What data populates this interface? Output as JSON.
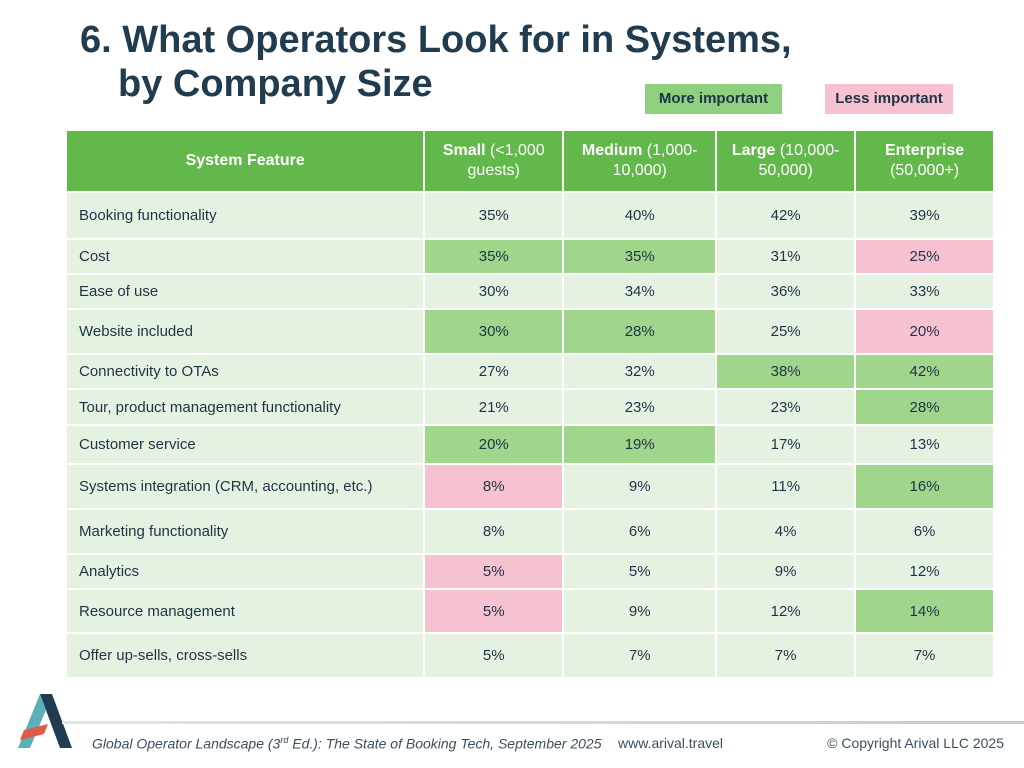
{
  "title": {
    "line1": "6. What Operators Look for in Systems,",
    "line2": "by Company Size"
  },
  "legend": {
    "more": "More important",
    "less": "Less important"
  },
  "colors": {
    "header": "#62b84b",
    "more": "#9fd68b",
    "less": "#f6c2cf",
    "neutral": "#e5f2e1"
  },
  "table": {
    "headers": [
      {
        "bold": "System Feature",
        "rest": ""
      },
      {
        "bold": "Small",
        "rest": " (<1,000 guests)"
      },
      {
        "bold": "Medium",
        "rest": " (1,000-10,000)"
      },
      {
        "bold": "Large",
        "rest": " (10,000-50,000)"
      },
      {
        "bold": "Enterprise",
        "rest": " (50,000+)"
      }
    ],
    "rows": [
      {
        "feature": "Booking functionality",
        "values": [
          "35%",
          "40%",
          "42%",
          "39%"
        ],
        "highlight": [
          "",
          "",
          "",
          ""
        ]
      },
      {
        "feature": "Cost",
        "values": [
          "35%",
          "35%",
          "31%",
          "25%"
        ],
        "highlight": [
          "more",
          "more",
          "",
          "less"
        ]
      },
      {
        "feature": "Ease of use",
        "values": [
          "30%",
          "34%",
          "36%",
          "33%"
        ],
        "highlight": [
          "",
          "",
          "",
          ""
        ]
      },
      {
        "feature": "Website included",
        "values": [
          "30%",
          "28%",
          "25%",
          "20%"
        ],
        "highlight": [
          "more",
          "more",
          "",
          "less"
        ]
      },
      {
        "feature": "Connectivity to OTAs",
        "values": [
          "27%",
          "32%",
          "38%",
          "42%"
        ],
        "highlight": [
          "",
          "",
          "more",
          "more"
        ]
      },
      {
        "feature": "Tour, product  management functionality",
        "values": [
          "21%",
          "23%",
          "23%",
          "28%"
        ],
        "highlight": [
          "",
          "",
          "",
          "more"
        ]
      },
      {
        "feature": "Customer service",
        "values": [
          "20%",
          "19%",
          "17%",
          "13%"
        ],
        "highlight": [
          "more",
          "more",
          "",
          ""
        ]
      },
      {
        "feature": "Systems integration (CRM, accounting, etc.)",
        "values": [
          "8%",
          "9%",
          "11%",
          "16%"
        ],
        "highlight": [
          "less",
          "",
          "",
          "more"
        ]
      },
      {
        "feature": "Marketing functionality",
        "values": [
          "8%",
          "6%",
          "4%",
          "6%"
        ],
        "highlight": [
          "",
          "",
          "",
          ""
        ]
      },
      {
        "feature": "Analytics",
        "values": [
          "5%",
          "5%",
          "9%",
          "12%"
        ],
        "highlight": [
          "less",
          "",
          "",
          ""
        ]
      },
      {
        "feature": "Resource management",
        "values": [
          "5%",
          "9%",
          "12%",
          "14%"
        ],
        "highlight": [
          "less",
          "",
          "",
          "more"
        ]
      },
      {
        "feature": "Offer up-sells, cross-sells",
        "values": [
          "5%",
          "7%",
          "7%",
          "7%"
        ],
        "highlight": [
          "",
          "",
          "",
          ""
        ]
      }
    ]
  },
  "footer": {
    "citation": "Global Operator Landscape (3rd Ed.):  The State of Booking Tech, September 2025",
    "url": "www.arival.travel",
    "copyright": "© Copyright Arival LLC 2025"
  }
}
